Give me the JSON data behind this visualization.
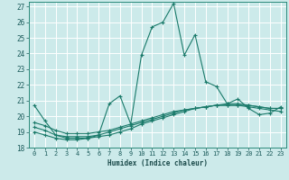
{
  "xlabel": "Humidex (Indice chaleur)",
  "bg_color": "#cceaea",
  "grid_color": "#ffffff",
  "line_color": "#1a7a6a",
  "xlim": [
    -0.5,
    23.5
  ],
  "ylim": [
    18,
    27.3
  ],
  "xticks": [
    0,
    1,
    2,
    3,
    4,
    5,
    6,
    7,
    8,
    9,
    10,
    11,
    12,
    13,
    14,
    15,
    16,
    17,
    18,
    19,
    20,
    21,
    22,
    23
  ],
  "yticks": [
    18,
    19,
    20,
    21,
    22,
    23,
    24,
    25,
    26,
    27
  ],
  "lines": [
    {
      "x": [
        0,
        1,
        2,
        3,
        4,
        5,
        6,
        7,
        8,
        9,
        10,
        11,
        12,
        13,
        14,
        15,
        16,
        17,
        18,
        19,
        20,
        21,
        22,
        23
      ],
      "y": [
        20.7,
        19.7,
        18.8,
        18.6,
        18.6,
        18.6,
        18.8,
        20.8,
        21.3,
        19.5,
        23.9,
        25.7,
        26.0,
        27.2,
        23.9,
        25.2,
        22.2,
        21.9,
        20.8,
        21.1,
        20.5,
        20.1,
        20.2,
        20.6
      ]
    },
    {
      "x": [
        0,
        1,
        2,
        3,
        4,
        5,
        6,
        7,
        8,
        9,
        10,
        11,
        12,
        13,
        14,
        15,
        16,
        17,
        18,
        19,
        20,
        21,
        22,
        23
      ],
      "y": [
        19.0,
        18.8,
        18.6,
        18.5,
        18.5,
        18.6,
        18.7,
        18.8,
        19.0,
        19.2,
        19.5,
        19.7,
        19.9,
        20.1,
        20.3,
        20.5,
        20.6,
        20.7,
        20.7,
        20.7,
        20.6,
        20.5,
        20.4,
        20.3
      ]
    },
    {
      "x": [
        0,
        1,
        2,
        3,
        4,
        5,
        6,
        7,
        8,
        9,
        10,
        11,
        12,
        13,
        14,
        15,
        16,
        17,
        18,
        19,
        20,
        21,
        22,
        23
      ],
      "y": [
        19.3,
        19.1,
        18.8,
        18.7,
        18.7,
        18.7,
        18.8,
        19.0,
        19.2,
        19.4,
        19.6,
        19.8,
        20.0,
        20.2,
        20.4,
        20.5,
        20.6,
        20.7,
        20.7,
        20.7,
        20.7,
        20.6,
        20.5,
        20.5
      ]
    },
    {
      "x": [
        0,
        1,
        2,
        3,
        4,
        5,
        6,
        7,
        8,
        9,
        10,
        11,
        12,
        13,
        14,
        15,
        16,
        17,
        18,
        19,
        20,
        21,
        22,
        23
      ],
      "y": [
        19.6,
        19.4,
        19.1,
        18.9,
        18.9,
        18.9,
        19.0,
        19.1,
        19.3,
        19.5,
        19.7,
        19.9,
        20.1,
        20.3,
        20.4,
        20.5,
        20.6,
        20.7,
        20.8,
        20.8,
        20.7,
        20.6,
        20.5,
        20.5
      ]
    }
  ]
}
